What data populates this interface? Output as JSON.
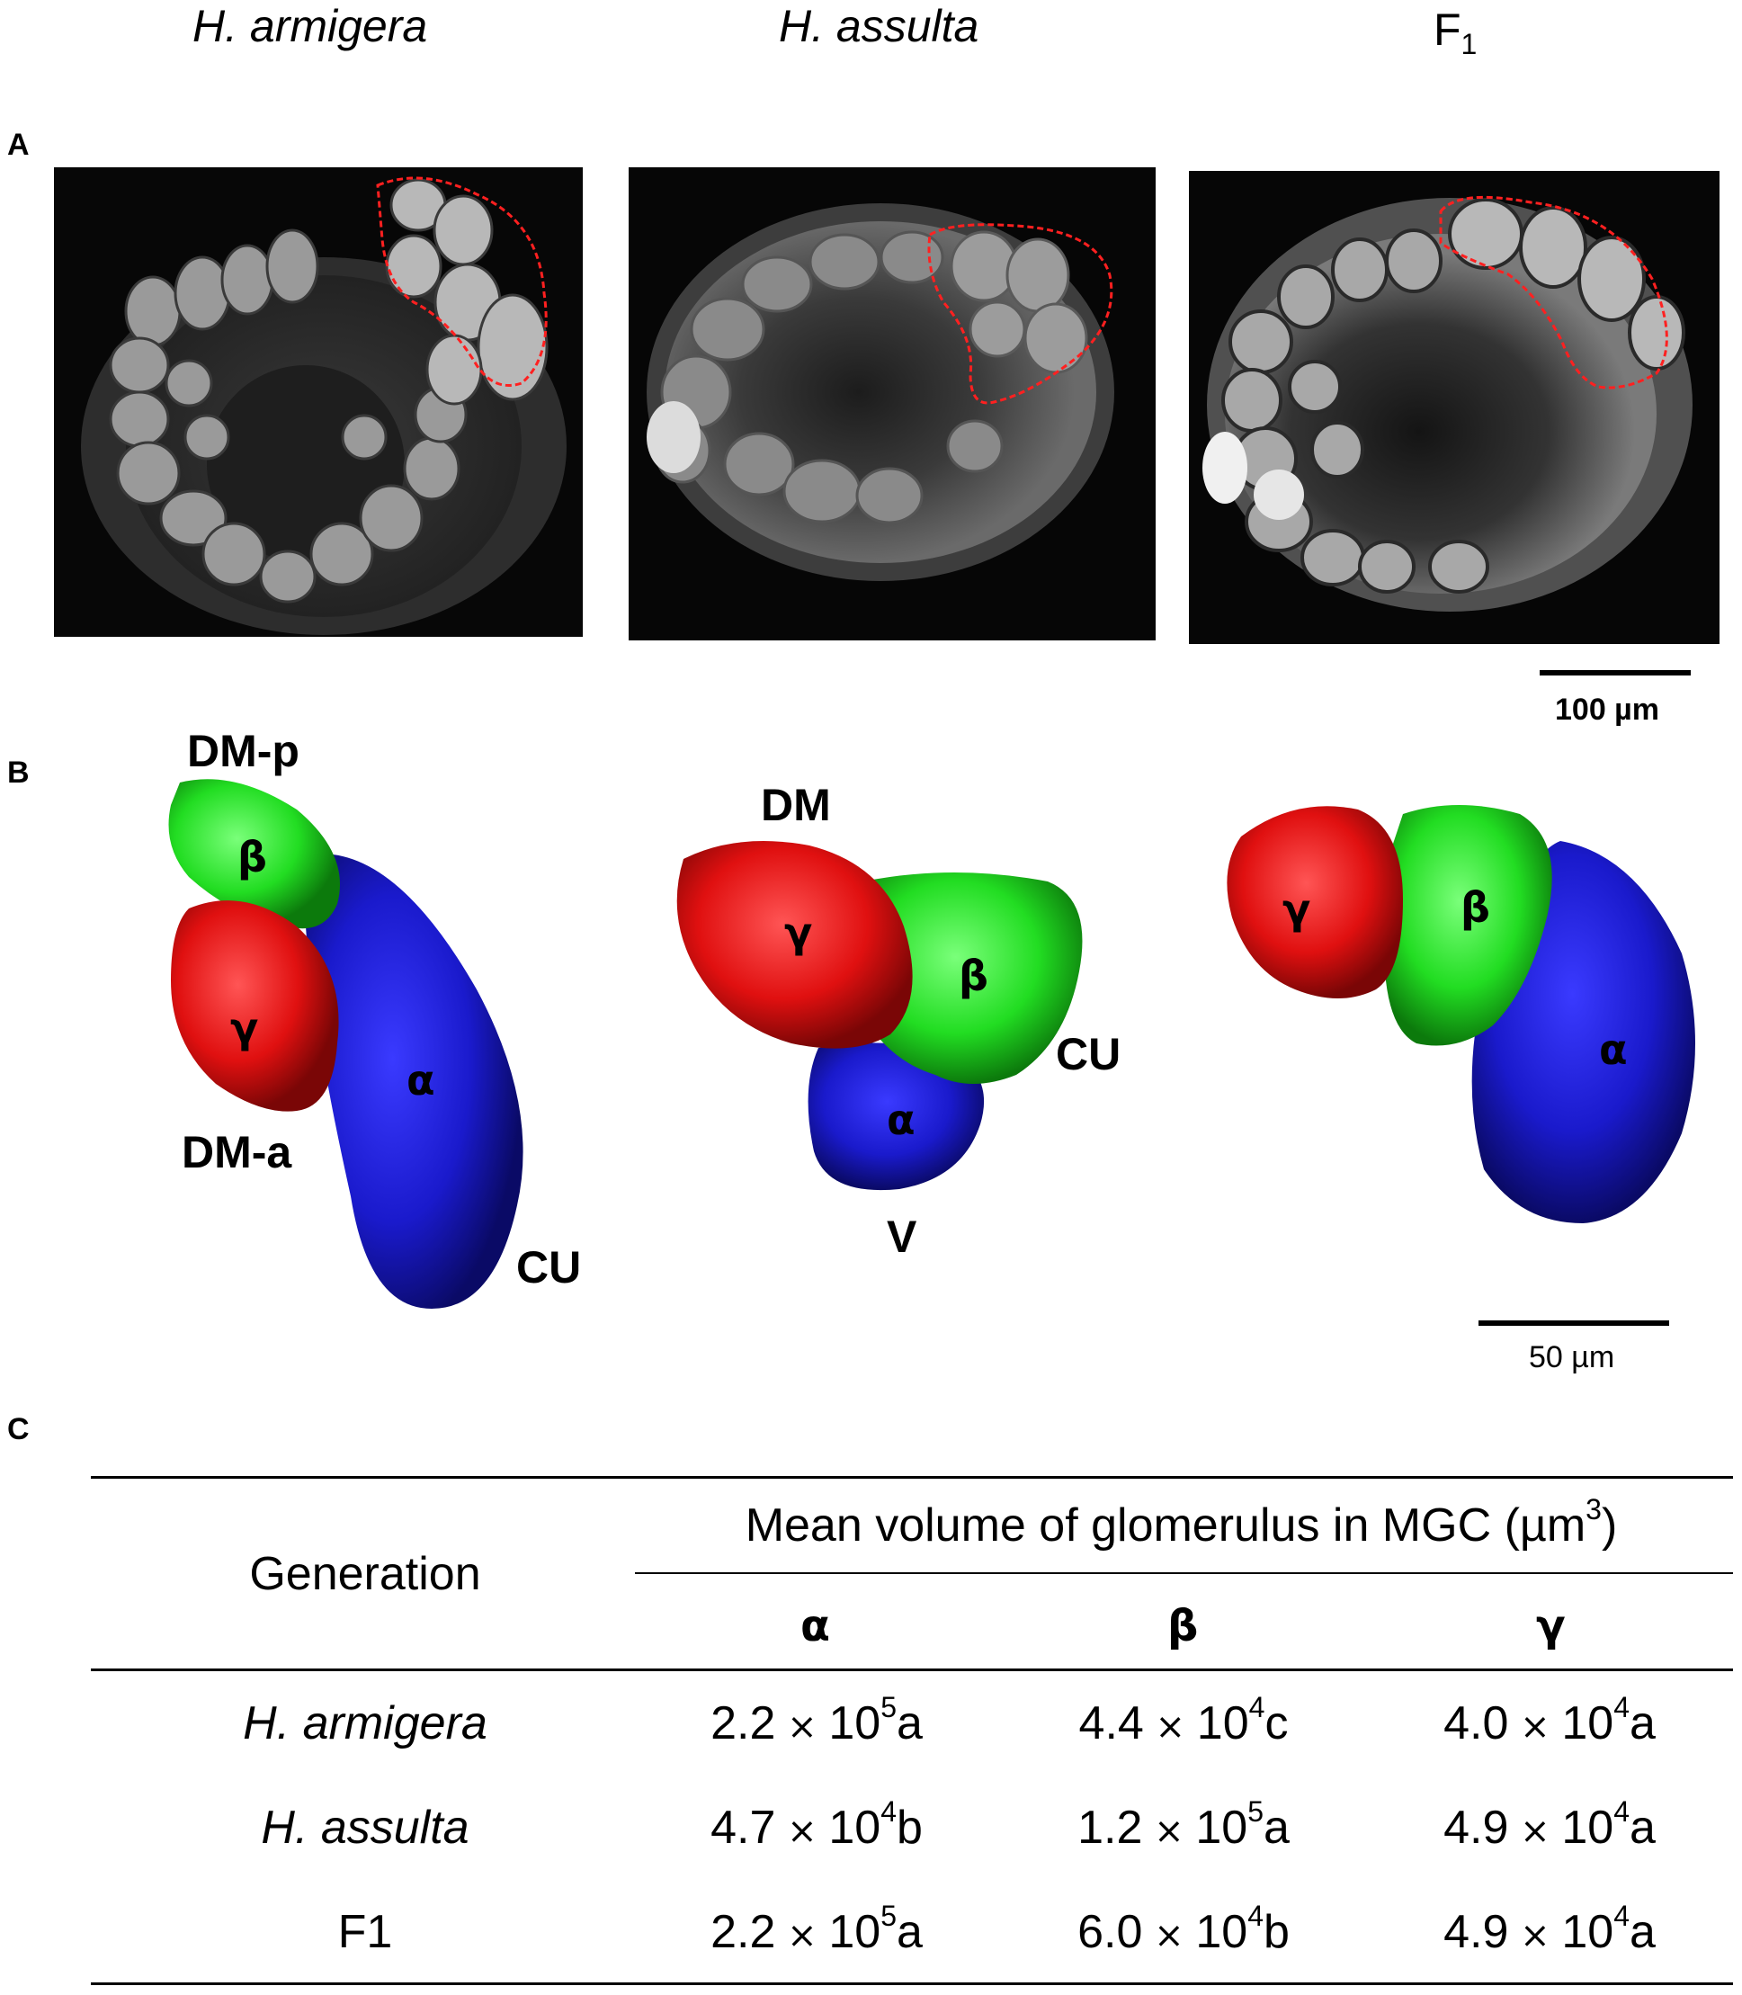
{
  "columns": {
    "col1": "H. armigera",
    "col2": "H. assulta",
    "col3_base": "F",
    "col3_sub": "1"
  },
  "panels": {
    "a": "A",
    "b": "B",
    "c": "C"
  },
  "scale_bars": {
    "a": "100 µm",
    "b": "50 µm"
  },
  "colors": {
    "alpha": "#1a1acc",
    "beta": "#22dd22",
    "gamma": "#e01010",
    "outline": "#ff2020"
  },
  "models": {
    "armigera": {
      "dm_p": "DM-p",
      "dm_a": "DM-a",
      "cu": "CU",
      "alpha": "α",
      "beta": "β",
      "gamma": "γ"
    },
    "assulta": {
      "dm": "DM",
      "cu": "CU",
      "v": "V",
      "alpha": "α",
      "beta": "β",
      "gamma": "γ"
    },
    "f1": {
      "alpha": "α",
      "beta": "β",
      "gamma": "γ"
    }
  },
  "table": {
    "generation_header": "Generation",
    "volume_header": "Mean volume of glomerulus in MGC (µm",
    "volume_header_sup": "3",
    "volume_header_close": ")",
    "cols": [
      "α",
      "β",
      "γ"
    ],
    "times": "×",
    "rows": [
      {
        "name": "H. armigera",
        "italic": true,
        "cells": [
          {
            "m": "2.2",
            "e": "5",
            "l": "a"
          },
          {
            "m": "4.4",
            "e": "4",
            "l": "c"
          },
          {
            "m": "4.0",
            "e": "4",
            "l": "a"
          }
        ]
      },
      {
        "name": "H. assulta",
        "italic": true,
        "cells": [
          {
            "m": "4.7",
            "e": "4",
            "l": "b"
          },
          {
            "m": "1.2",
            "e": "5",
            "l": "a"
          },
          {
            "m": "4.9",
            "e": "4",
            "l": "a"
          }
        ]
      },
      {
        "name": "F1",
        "italic": false,
        "cells": [
          {
            "m": "2.2",
            "e": "5",
            "l": "a"
          },
          {
            "m": "6.0",
            "e": "4",
            "l": "b"
          },
          {
            "m": "4.9",
            "e": "4",
            "l": "a"
          }
        ]
      }
    ]
  }
}
